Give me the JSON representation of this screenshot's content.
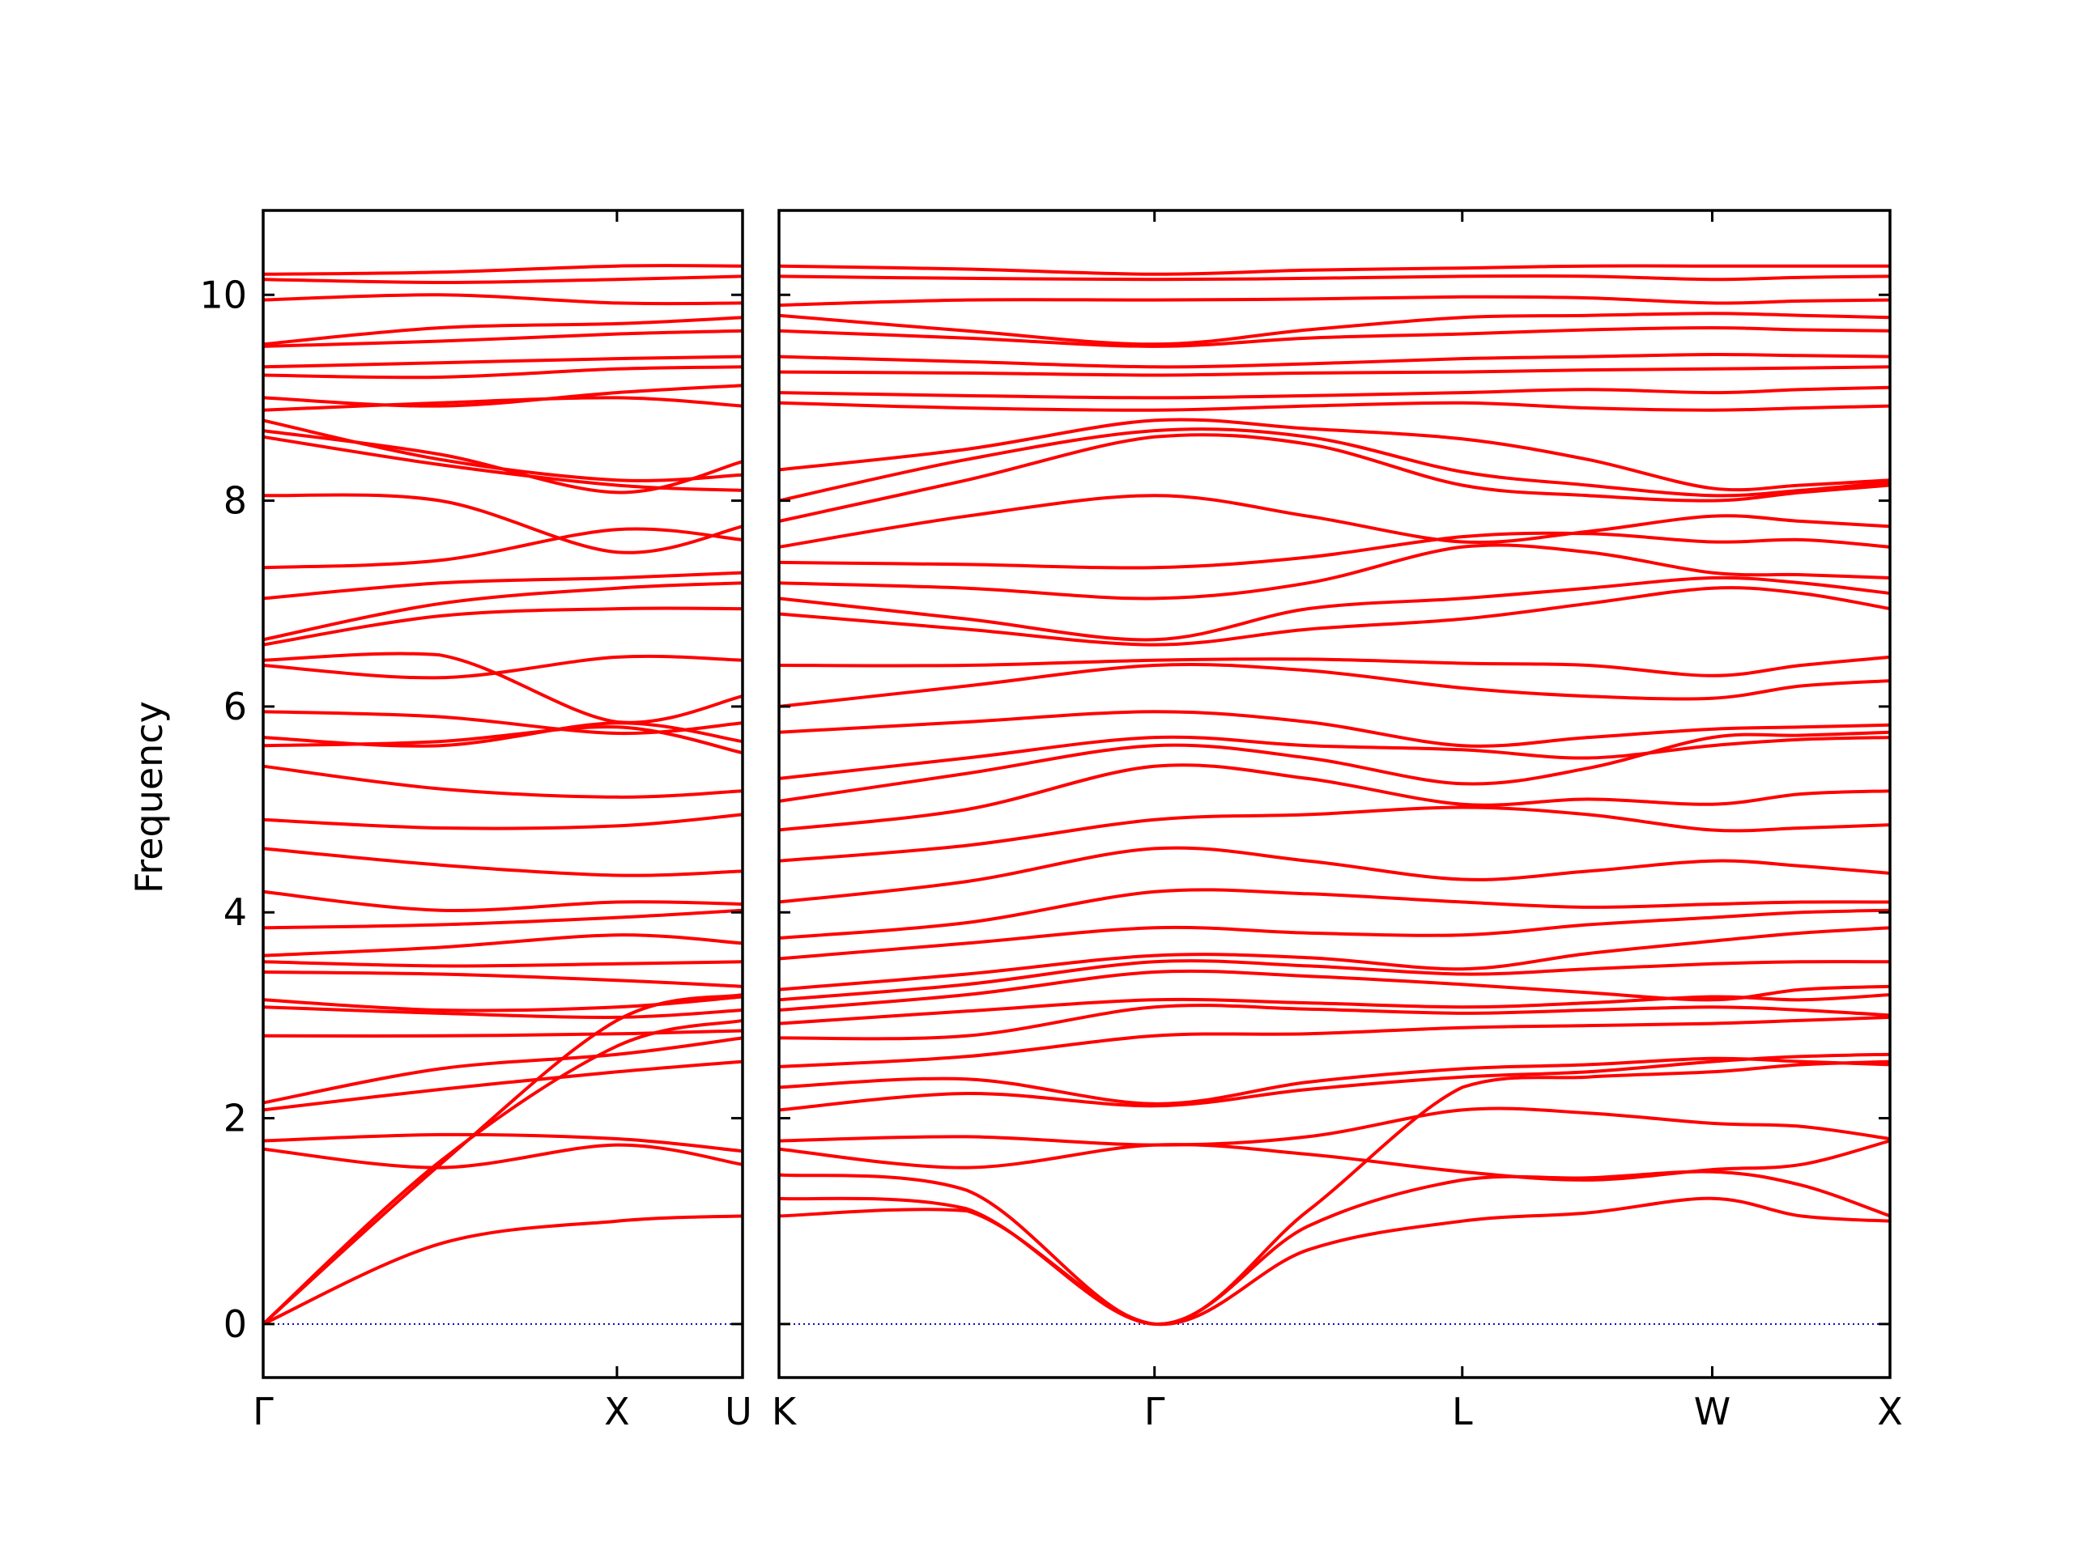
{
  "chart_data": {
    "type": "line",
    "ylabel": "Frequency",
    "xlabel": "",
    "title": "",
    "ylim": [
      -0.52,
      10.82
    ],
    "yticks": [
      0,
      2,
      4,
      6,
      8,
      10
    ],
    "series_color": "#ff0000",
    "zero_line_color": "#0000cc",
    "panels": [
      {
        "path_labels": [
          "Γ",
          "X",
          "U"
        ],
        "path_positions": [
          0,
          0.738,
          1.0
        ],
        "label_positions": [
          0,
          0.738,
          1.0
        ],
        "bands_sampled_at": [
          0,
          0.369,
          0.738,
          1.0
        ],
        "bands": [
          [
            0,
            0.78,
            1.0,
            1.05
          ],
          [
            0,
            1.58,
            2.7,
            2.95
          ],
          [
            0,
            1.55,
            2.95,
            3.2
          ],
          [
            1.7,
            1.52,
            1.74,
            1.55
          ],
          [
            1.78,
            1.84,
            1.8,
            1.68
          ],
          [
            2.08,
            2.28,
            2.45,
            2.55
          ],
          [
            2.15,
            2.48,
            2.62,
            2.78
          ],
          [
            2.8,
            2.8,
            2.82,
            2.85
          ],
          [
            3.08,
            3.02,
            2.98,
            3.05
          ],
          [
            3.15,
            3.05,
            3.08,
            3.18
          ],
          [
            3.42,
            3.4,
            3.34,
            3.28
          ],
          [
            3.52,
            3.48,
            3.5,
            3.52
          ],
          [
            3.58,
            3.66,
            3.78,
            3.7
          ],
          [
            3.85,
            3.88,
            3.95,
            4.02
          ],
          [
            4.2,
            4.02,
            4.1,
            4.08
          ],
          [
            4.62,
            4.46,
            4.36,
            4.4
          ],
          [
            4.9,
            4.82,
            4.84,
            4.95
          ],
          [
            5.42,
            5.2,
            5.12,
            5.18
          ],
          [
            5.62,
            5.66,
            5.8,
            5.55
          ],
          [
            5.7,
            5.62,
            5.84,
            5.66
          ],
          [
            5.95,
            5.9,
            5.74,
            5.84
          ],
          [
            6.4,
            6.28,
            6.48,
            6.45
          ],
          [
            6.45,
            6.5,
            5.85,
            6.1
          ],
          [
            6.6,
            6.88,
            6.95,
            6.95
          ],
          [
            6.65,
            7.0,
            7.15,
            7.2
          ],
          [
            7.05,
            7.2,
            7.25,
            7.3
          ],
          [
            7.35,
            7.42,
            7.72,
            7.62
          ],
          [
            8.05,
            8.0,
            7.5,
            7.75
          ],
          [
            8.62,
            8.35,
            8.15,
            8.1
          ],
          [
            8.68,
            8.45,
            8.08,
            8.38
          ],
          [
            8.78,
            8.4,
            8.2,
            8.25
          ],
          [
            8.88,
            8.95,
            9.0,
            8.92
          ],
          [
            9.0,
            8.92,
            9.05,
            9.12
          ],
          [
            9.22,
            9.2,
            9.28,
            9.3
          ],
          [
            9.3,
            9.34,
            9.38,
            9.4
          ],
          [
            9.5,
            9.55,
            9.62,
            9.65
          ],
          [
            9.52,
            9.68,
            9.72,
            9.78
          ],
          [
            9.95,
            10.0,
            9.92,
            9.92
          ],
          [
            10.15,
            10.12,
            10.15,
            10.18
          ],
          [
            10.2,
            10.22,
            10.28,
            10.28
          ]
        ]
      },
      {
        "path_labels": [
          "K",
          "Γ",
          "L",
          "W",
          "X"
        ],
        "path_positions": [
          0,
          0.338,
          0.615,
          0.84,
          1.0
        ],
        "label_positions": [
          0,
          0.338,
          0.615,
          0.84,
          1.0
        ],
        "bands_sampled_at": [
          0,
          0.169,
          0.338,
          0.476,
          0.615,
          0.728,
          0.84,
          0.92,
          1.0
        ],
        "bands": [
          [
            1.05,
            1.1,
            0,
            0.72,
            1.0,
            1.08,
            1.22,
            1.05,
            1.0
          ],
          [
            1.22,
            1.12,
            0,
            0.95,
            1.4,
            1.42,
            1.48,
            1.35,
            1.05
          ],
          [
            1.45,
            1.3,
            0,
            1.1,
            2.3,
            2.4,
            2.45,
            2.52,
            2.55
          ],
          [
            1.7,
            1.52,
            1.74,
            1.65,
            1.48,
            1.4,
            1.5,
            1.55,
            1.78
          ],
          [
            1.78,
            1.82,
            1.74,
            1.82,
            2.08,
            2.05,
            1.95,
            1.92,
            1.8
          ],
          [
            2.08,
            2.24,
            2.12,
            2.28,
            2.4,
            2.45,
            2.55,
            2.6,
            2.62
          ],
          [
            2.3,
            2.38,
            2.14,
            2.35,
            2.48,
            2.52,
            2.58,
            2.55,
            2.52
          ],
          [
            2.5,
            2.6,
            2.8,
            2.82,
            2.88,
            2.9,
            2.92,
            2.95,
            2.98
          ],
          [
            2.78,
            2.8,
            3.08,
            3.06,
            3.02,
            3.05,
            3.08,
            3.05,
            3.0
          ],
          [
            2.92,
            3.04,
            3.15,
            3.12,
            3.08,
            3.12,
            3.18,
            3.15,
            3.2
          ],
          [
            3.05,
            3.2,
            3.42,
            3.38,
            3.3,
            3.22,
            3.15,
            3.25,
            3.28
          ],
          [
            3.15,
            3.3,
            3.52,
            3.48,
            3.4,
            3.45,
            3.5,
            3.52,
            3.52
          ],
          [
            3.25,
            3.4,
            3.58,
            3.56,
            3.45,
            3.6,
            3.72,
            3.8,
            3.85
          ],
          [
            3.55,
            3.7,
            3.85,
            3.8,
            3.78,
            3.88,
            3.95,
            4.0,
            4.02
          ],
          [
            3.75,
            3.9,
            4.2,
            4.18,
            4.1,
            4.05,
            4.08,
            4.1,
            4.1
          ],
          [
            4.1,
            4.3,
            4.62,
            4.5,
            4.32,
            4.4,
            4.5,
            4.45,
            4.38
          ],
          [
            4.5,
            4.65,
            4.9,
            4.95,
            5.02,
            4.95,
            4.8,
            4.82,
            4.85
          ],
          [
            4.8,
            5.0,
            5.42,
            5.3,
            5.05,
            5.1,
            5.05,
            5.15,
            5.18
          ],
          [
            5.08,
            5.35,
            5.62,
            5.5,
            5.25,
            5.4,
            5.7,
            5.72,
            5.75
          ],
          [
            5.3,
            5.5,
            5.7,
            5.62,
            5.58,
            5.5,
            5.62,
            5.68,
            5.7
          ],
          [
            5.75,
            5.85,
            5.95,
            5.85,
            5.62,
            5.7,
            5.78,
            5.8,
            5.82
          ],
          [
            6.0,
            6.2,
            6.4,
            6.35,
            6.18,
            6.1,
            6.08,
            6.2,
            6.25
          ],
          [
            6.4,
            6.4,
            6.45,
            6.46,
            6.42,
            6.4,
            6.3,
            6.4,
            6.48
          ],
          [
            6.9,
            6.75,
            6.6,
            6.75,
            6.85,
            7.0,
            7.15,
            7.1,
            6.95
          ],
          [
            7.05,
            6.85,
            6.65,
            6.95,
            7.05,
            7.15,
            7.25,
            7.2,
            7.1
          ],
          [
            7.2,
            7.15,
            7.05,
            7.2,
            7.55,
            7.5,
            7.3,
            7.28,
            7.25
          ],
          [
            7.4,
            7.38,
            7.35,
            7.45,
            7.65,
            7.68,
            7.6,
            7.62,
            7.55
          ],
          [
            7.55,
            7.85,
            8.05,
            7.85,
            7.6,
            7.7,
            7.85,
            7.8,
            7.75
          ],
          [
            7.8,
            8.2,
            8.62,
            8.55,
            8.15,
            8.05,
            8.0,
            8.08,
            8.15
          ],
          [
            8.0,
            8.4,
            8.68,
            8.62,
            8.28,
            8.15,
            8.05,
            8.1,
            8.18
          ],
          [
            8.3,
            8.5,
            8.78,
            8.7,
            8.6,
            8.4,
            8.12,
            8.15,
            8.2
          ],
          [
            8.95,
            8.9,
            8.88,
            8.92,
            8.95,
            8.9,
            8.88,
            8.9,
            8.92
          ],
          [
            9.05,
            9.02,
            9.0,
            9.02,
            9.05,
            9.08,
            9.05,
            9.08,
            9.1
          ],
          [
            9.25,
            9.24,
            9.22,
            9.24,
            9.25,
            9.27,
            9.28,
            9.29,
            9.3
          ],
          [
            9.4,
            9.35,
            9.3,
            9.33,
            9.38,
            9.4,
            9.42,
            9.41,
            9.4
          ],
          [
            9.65,
            9.58,
            9.5,
            9.58,
            9.62,
            9.66,
            9.68,
            9.66,
            9.65
          ],
          [
            9.8,
            9.65,
            9.52,
            9.66,
            9.78,
            9.8,
            9.82,
            9.8,
            9.78
          ],
          [
            9.9,
            9.95,
            9.95,
            9.96,
            9.98,
            9.97,
            9.92,
            9.94,
            9.95
          ],
          [
            10.18,
            10.16,
            10.15,
            10.16,
            10.18,
            10.18,
            10.15,
            10.17,
            10.18
          ],
          [
            10.28,
            10.25,
            10.2,
            10.24,
            10.26,
            10.28,
            10.28,
            10.28,
            10.28
          ]
        ]
      }
    ]
  }
}
